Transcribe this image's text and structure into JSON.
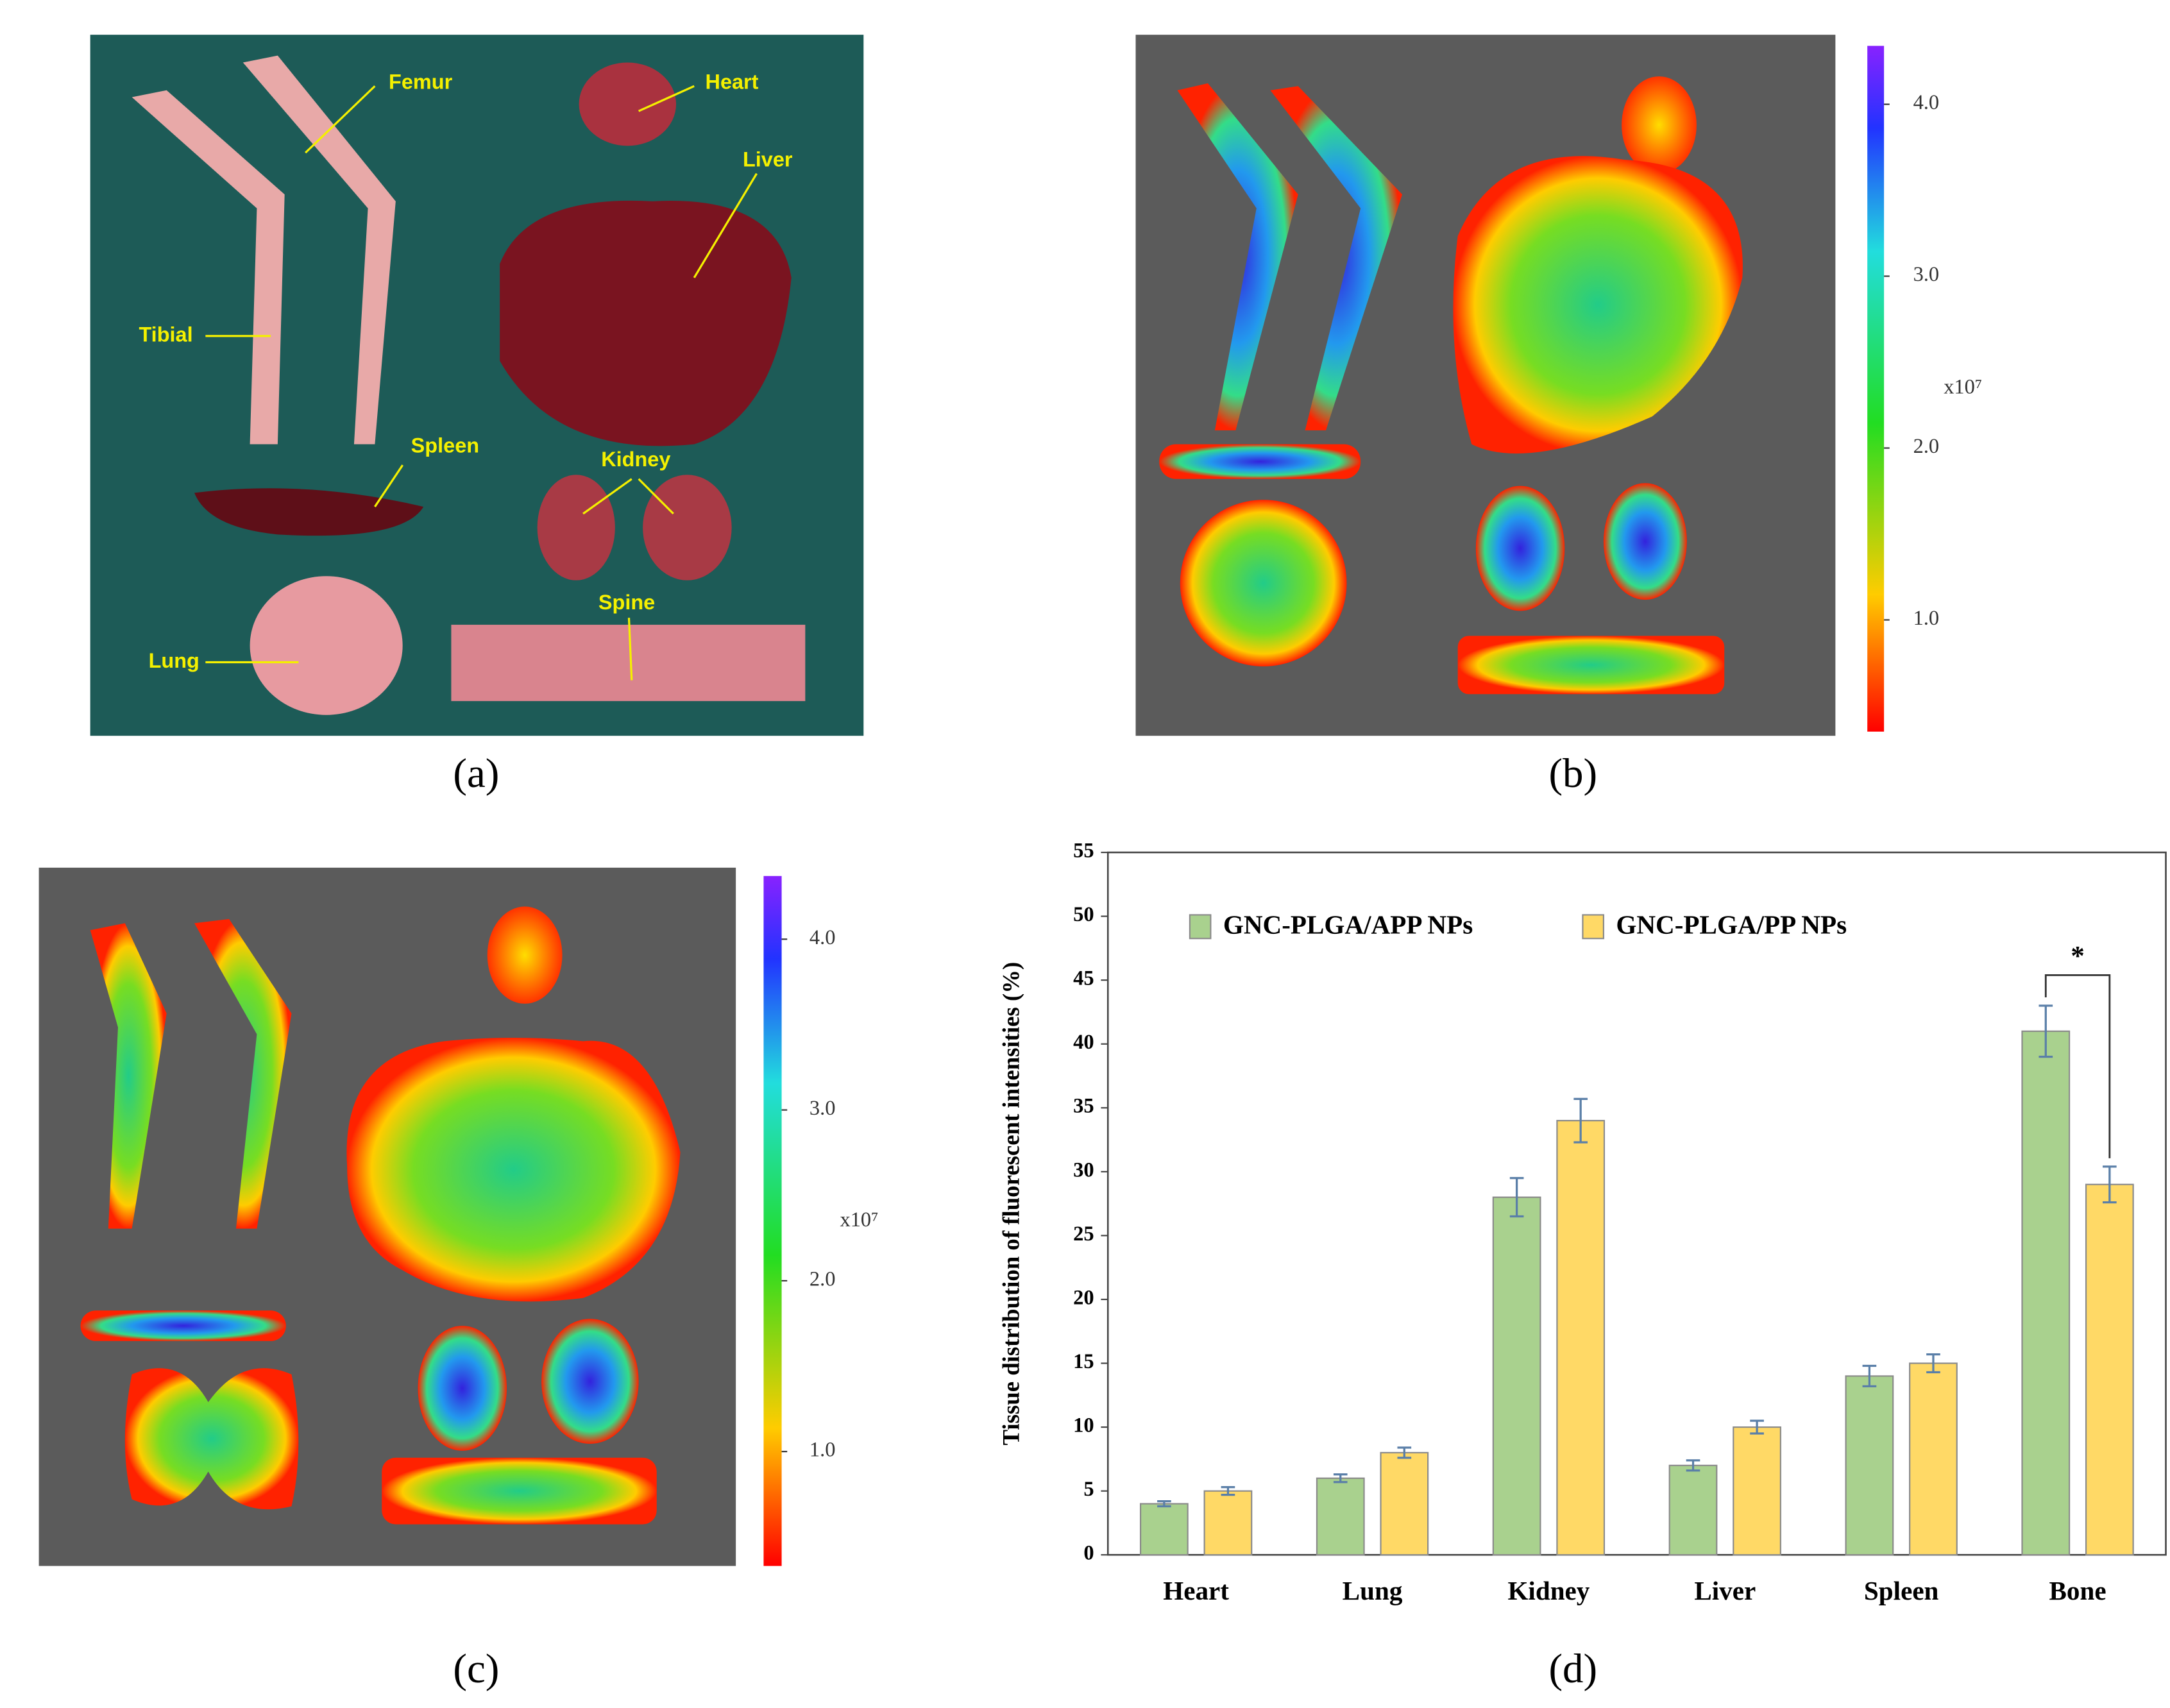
{
  "panels": {
    "a": {
      "caption": "(a)",
      "labels": {
        "femur": "Femur",
        "heart": "Heart",
        "liver": "Liver",
        "tibial": "Tibial",
        "spleen": "Spleen",
        "kidney": "Kidney",
        "spine": "Spine",
        "lung": "Lung"
      }
    },
    "b": {
      "caption": "(b)",
      "colorbar": {
        "lim": [
          0.35,
          4.34
        ],
        "ticks": [
          {
            "value": 4,
            "label": "4.0"
          },
          {
            "value": 3,
            "label": "3.0"
          },
          {
            "value": 2,
            "label": "2.0"
          },
          {
            "value": 1,
            "label": "1.0"
          }
        ],
        "unit": "x10⁷"
      }
    },
    "c": {
      "caption": "(c)",
      "colorbar": {
        "lim": [
          0.33,
          4.37
        ],
        "ticks": [
          {
            "value": 4,
            "label": "4.0"
          },
          {
            "value": 3,
            "label": "3.0"
          },
          {
            "value": 2,
            "label": "2.0"
          },
          {
            "value": 1,
            "label": "1.0"
          }
        ],
        "unit": "x10⁷"
      }
    },
    "d": {
      "caption": "(d)"
    }
  },
  "chart_data": {
    "type": "bar",
    "y_label": "Tissue distribution of fluorescent intensities (%)",
    "categories": [
      "Heart",
      "Lung",
      "Kidney",
      "Liver",
      "Spleen",
      "Bone"
    ],
    "series": [
      {
        "name": "GNC-PLGA/APP NPs",
        "color": "#a9d18e",
        "values": [
          4,
          6,
          28,
          7,
          14,
          41
        ],
        "errors": [
          0.2,
          0.3,
          1.5,
          0.4,
          0.8,
          2
        ]
      },
      {
        "name": "GNC-PLGA/PP NPs",
        "color": "#ffd966",
        "values": [
          5,
          8,
          34,
          10,
          15,
          29
        ],
        "errors": [
          0.3,
          0.4,
          1.7,
          0.5,
          0.7,
          1.4
        ]
      }
    ],
    "ylim": [
      0,
      55
    ],
    "yticks": [
      0,
      5,
      10,
      15,
      20,
      25,
      30,
      35,
      40,
      45,
      50,
      55
    ],
    "annotation": "*"
  }
}
